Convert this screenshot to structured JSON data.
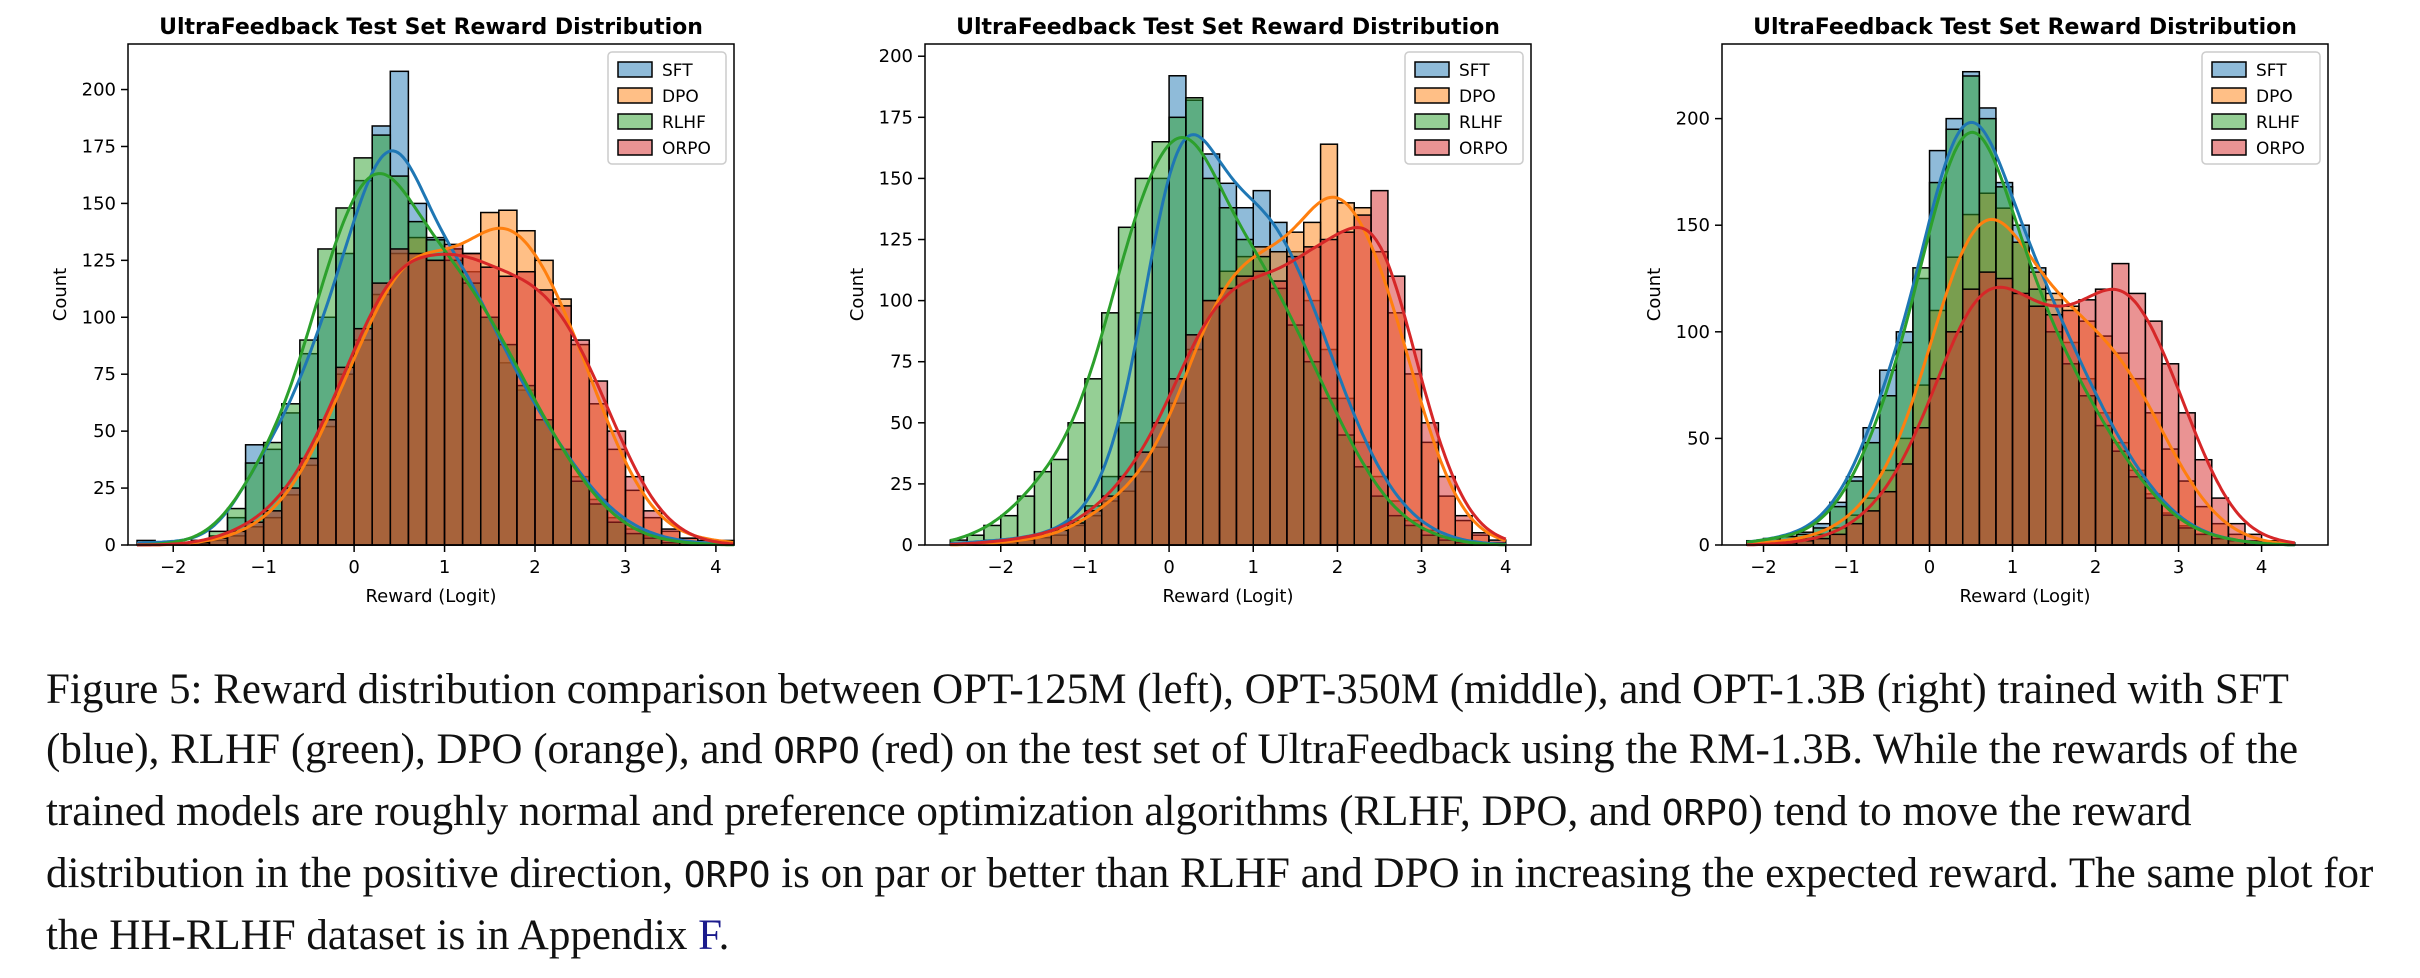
{
  "chart_data": [
    {
      "type": "histogram",
      "title": "UltraFeedback Test Set Reward Distribution",
      "xlabel": "Reward (Logit)",
      "ylabel": "Count",
      "xlim": [
        -2.5,
        4.2
      ],
      "ylim": [
        0,
        220
      ],
      "xticks": [
        -2,
        -1,
        0,
        1,
        2,
        3,
        4
      ],
      "yticks": [
        0,
        25,
        50,
        75,
        100,
        125,
        150,
        175,
        200
      ],
      "legend_position": "top-right",
      "bin_edges": [
        -2.4,
        -2.2,
        -2.0,
        -1.8,
        -1.6,
        -1.4,
        -1.2,
        -1.0,
        -0.8,
        -0.6,
        -0.4,
        -0.2,
        0.0,
        0.2,
        0.4,
        0.6,
        0.8,
        1.0,
        1.2,
        1.4,
        1.6,
        1.8,
        2.0,
        2.2,
        2.4,
        2.6,
        2.8,
        3.0,
        3.2,
        3.4,
        3.6,
        3.8,
        4.0,
        4.2
      ],
      "series": [
        {
          "name": "SFT",
          "color": "#1f77b4",
          "values": [
            2,
            1,
            1,
            2,
            4,
            12,
            44,
            42,
            58,
            84,
            100,
            128,
            160,
            184,
            208,
            150,
            135,
            130,
            120,
            100,
            80,
            68,
            55,
            42,
            30,
            20,
            12,
            7,
            4,
            2,
            1,
            1,
            0
          ]
        },
        {
          "name": "DPO",
          "color": "#ff7f0e",
          "values": [
            0,
            0,
            0,
            1,
            2,
            4,
            8,
            12,
            22,
            35,
            52,
            75,
            90,
            110,
            128,
            135,
            125,
            130,
            128,
            146,
            147,
            138,
            125,
            108,
            88,
            62,
            42,
            24,
            12,
            6,
            3,
            2,
            2
          ]
        },
        {
          "name": "RLHF",
          "color": "#2ca02c",
          "values": [
            0,
            0,
            1,
            2,
            6,
            16,
            36,
            45,
            62,
            90,
            130,
            148,
            170,
            180,
            162,
            142,
            134,
            125,
            115,
            100,
            88,
            70,
            55,
            42,
            28,
            18,
            10,
            5,
            3,
            1,
            1,
            0,
            0
          ]
        },
        {
          "name": "ORPO",
          "color": "#d62728",
          "values": [
            0,
            0,
            0,
            1,
            3,
            6,
            10,
            15,
            25,
            38,
            55,
            78,
            95,
            115,
            130,
            128,
            125,
            132,
            128,
            122,
            118,
            120,
            112,
            105,
            90,
            72,
            50,
            30,
            15,
            7,
            3,
            1,
            0
          ]
        }
      ]
    },
    {
      "type": "histogram",
      "title": "UltraFeedback Test Set Reward Distribution",
      "xlabel": "Reward (Logit)",
      "ylabel": "Count",
      "xlim": [
        -2.9,
        4.3
      ],
      "ylim": [
        0,
        205
      ],
      "xticks": [
        -2,
        -1,
        0,
        1,
        2,
        3,
        4
      ],
      "yticks": [
        0,
        25,
        50,
        75,
        100,
        125,
        150,
        175,
        200
      ],
      "legend_position": "top-right",
      "bin_edges": [
        -2.6,
        -2.4,
        -2.2,
        -2.0,
        -1.8,
        -1.6,
        -1.4,
        -1.2,
        -1.0,
        -0.8,
        -0.6,
        -0.4,
        -0.2,
        0.0,
        0.2,
        0.4,
        0.6,
        0.8,
        1.0,
        1.2,
        1.4,
        1.6,
        1.8,
        2.0,
        2.2,
        2.4,
        2.6,
        2.8,
        3.0,
        3.2,
        3.4,
        3.6,
        3.8,
        4.0
      ],
      "series": [
        {
          "name": "SFT",
          "color": "#1f77b4",
          "values": [
            1,
            1,
            2,
            2,
            3,
            4,
            6,
            10,
            16,
            28,
            50,
            95,
            150,
            192,
            182,
            160,
            148,
            138,
            145,
            132,
            120,
            100,
            80,
            60,
            42,
            28,
            18,
            10,
            6,
            3,
            1,
            1,
            0
          ]
        },
        {
          "name": "DPO",
          "color": "#ff7f0e",
          "values": [
            0,
            0,
            1,
            1,
            2,
            3,
            4,
            8,
            12,
            18,
            22,
            30,
            40,
            58,
            80,
            100,
            112,
            118,
            122,
            120,
            128,
            132,
            164,
            140,
            138,
            120,
            95,
            70,
            42,
            20,
            10,
            4,
            1
          ]
        },
        {
          "name": "RLHF",
          "color": "#2ca02c",
          "values": [
            2,
            4,
            8,
            12,
            20,
            30,
            35,
            50,
            68,
            95,
            130,
            150,
            165,
            175,
            183,
            150,
            138,
            125,
            118,
            105,
            90,
            75,
            60,
            45,
            32,
            20,
            12,
            8,
            4,
            2,
            1,
            0,
            0
          ]
        },
        {
          "name": "ORPO",
          "color": "#d62728",
          "values": [
            0,
            1,
            1,
            2,
            3,
            4,
            6,
            9,
            14,
            20,
            28,
            38,
            50,
            68,
            86,
            100,
            105,
            110,
            112,
            108,
            118,
            122,
            125,
            128,
            135,
            145,
            110,
            80,
            50,
            28,
            12,
            5,
            2
          ]
        }
      ]
    },
    {
      "type": "histogram",
      "title": "UltraFeedback Test Set Reward Distribution",
      "xlabel": "Reward (Logit)",
      "ylabel": "Count",
      "xlim": [
        -2.5,
        4.8
      ],
      "ylim": [
        0,
        235
      ],
      "xticks": [
        -2,
        -1,
        0,
        1,
        2,
        3,
        4
      ],
      "yticks": [
        0,
        50,
        100,
        150,
        200
      ],
      "legend_position": "top-right",
      "bin_edges": [
        -2.2,
        -2.0,
        -1.8,
        -1.6,
        -1.4,
        -1.2,
        -1.0,
        -0.8,
        -0.6,
        -0.4,
        -0.2,
        0.0,
        0.2,
        0.4,
        0.6,
        0.8,
        1.0,
        1.2,
        1.4,
        1.6,
        1.8,
        2.0,
        2.2,
        2.4,
        2.6,
        2.8,
        3.0,
        3.2,
        3.4,
        3.6,
        3.8,
        4.0,
        4.2,
        4.4
      ],
      "series": [
        {
          "name": "SFT",
          "color": "#1f77b4",
          "values": [
            2,
            3,
            4,
            6,
            10,
            20,
            32,
            55,
            82,
            100,
            125,
            185,
            200,
            222,
            205,
            170,
            150,
            130,
            115,
            95,
            78,
            62,
            48,
            35,
            24,
            15,
            9,
            5,
            3,
            2,
            1,
            0,
            0
          ]
        },
        {
          "name": "DPO",
          "color": "#ff7f0e",
          "values": [
            1,
            1,
            2,
            3,
            5,
            8,
            14,
            22,
            35,
            50,
            75,
            110,
            135,
            155,
            165,
            158,
            142,
            128,
            118,
            112,
            105,
            98,
            90,
            78,
            62,
            45,
            30,
            18,
            10,
            5,
            2,
            1,
            0
          ]
        },
        {
          "name": "RLHF",
          "color": "#2ca02c",
          "values": [
            2,
            3,
            4,
            5,
            8,
            18,
            30,
            48,
            70,
            95,
            130,
            170,
            195,
            220,
            200,
            168,
            142,
            120,
            100,
            85,
            70,
            56,
            44,
            32,
            22,
            14,
            8,
            5,
            3,
            2,
            1,
            0,
            0
          ]
        },
        {
          "name": "ORPO",
          "color": "#d62728",
          "values": [
            0,
            0,
            1,
            2,
            3,
            5,
            10,
            16,
            25,
            38,
            55,
            78,
            100,
            120,
            128,
            125,
            118,
            112,
            108,
            110,
            115,
            120,
            132,
            118,
            105,
            85,
            62,
            40,
            22,
            10,
            5,
            2,
            1
          ]
        }
      ]
    }
  ],
  "caption": {
    "p1": "Figure 5: Reward distribution comparison between OPT-125M (left), OPT-350M (middle), and OPT-1.3B (right) trained with SFT (blue), RLHF (green), DPO (orange), and ",
    "orpo1": "ORPO",
    "p2": " (red) on the test set of UltraFeedback using the RM-1.3B. While the rewards of the trained models are roughly normal and preference optimization algorithms (RLHF, DPO, and ",
    "orpo2": "ORPO",
    "p3": ") tend to move the reward distribution in the positive direction, ",
    "orpo3": "ORPO",
    "p4": " is on par or better than RLHF and DPO in increasing the expected reward. The same plot for the HH-RLHF dataset is in Appendix ",
    "appendix_ref": "F",
    "p5": "."
  }
}
